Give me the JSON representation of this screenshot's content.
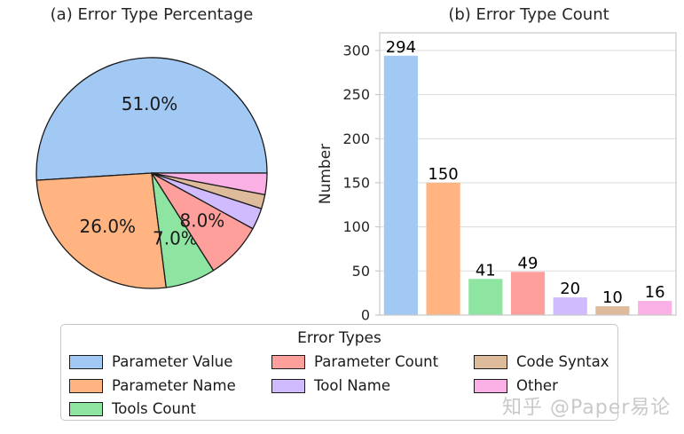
{
  "legend": {
    "title": "Error Types",
    "items": [
      {
        "label": "Parameter Value",
        "color": "#a1c9f4",
        "col": 0,
        "row": 0
      },
      {
        "label": "Parameter Name",
        "color": "#ffb482",
        "col": 0,
        "row": 1
      },
      {
        "label": "Tools Count",
        "color": "#8de5a1",
        "col": 0,
        "row": 2
      },
      {
        "label": "Parameter Count",
        "color": "#ff9f9b",
        "col": 1,
        "row": 0
      },
      {
        "label": "Tool Name",
        "color": "#d0bbff",
        "col": 1,
        "row": 1
      },
      {
        "label": "Code Syntax",
        "color": "#debb9b",
        "col": 2,
        "row": 0
      },
      {
        "label": "Other",
        "color": "#fab0e4",
        "col": 2,
        "row": 1
      }
    ]
  },
  "watermark": {
    "text": "知乎 @Paper易论",
    "color": "#c9c9c9"
  },
  "style": {
    "grid_color": "#dcdcdc",
    "spine_color": "#c9c9c9",
    "pie_edge_color": "#1a1a1a",
    "text_color": "#1a1a1a",
    "tick_color": "#262626"
  },
  "chart_data": [
    {
      "type": "pie",
      "title": "(a) Error Type Percentage",
      "categories": [
        "Parameter Value",
        "Parameter Name",
        "Tools Count",
        "Parameter Count",
        "Tool Name",
        "Code Syntax",
        "Other"
      ],
      "values": [
        51,
        26,
        7,
        8,
        3,
        2,
        3
      ],
      "slice_labels": [
        "51.0%",
        "26.0%",
        "7.0%",
        "8.0%",
        "",
        "",
        ""
      ],
      "colors": [
        "#a1c9f4",
        "#ffb482",
        "#8de5a1",
        "#ff9f9b",
        "#d0bbff",
        "#debb9b",
        "#fab0e4"
      ],
      "start_angle": 0,
      "direction": "counterclockwise",
      "label_distance": 0.6
    },
    {
      "type": "bar",
      "title": "(b) Error Type Count",
      "xlabel": "",
      "ylabel": "Number",
      "categories": [
        "Parameter Value",
        "Parameter Name",
        "Tools Count",
        "Parameter Count",
        "Tool Name",
        "Code Syntax",
        "Other"
      ],
      "values": [
        294,
        150,
        41,
        49,
        20,
        10,
        16
      ],
      "bar_labels": [
        "294",
        "150",
        "41",
        "49",
        "20",
        "10",
        "16"
      ],
      "colors": [
        "#a1c9f4",
        "#ffb482",
        "#8de5a1",
        "#ff9f9b",
        "#d0bbff",
        "#debb9b",
        "#fab0e4"
      ],
      "yticks": [
        0,
        50,
        100,
        150,
        200,
        250,
        300
      ],
      "ylim": [
        0,
        320
      ],
      "grid": "horizontal",
      "x_tick_labels_shown": false
    }
  ]
}
